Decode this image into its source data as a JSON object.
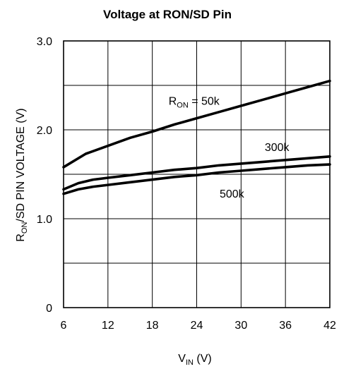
{
  "chart_data": {
    "type": "line",
    "title": "Voltage at RON/SD Pin",
    "xlabel": {
      "main": "V",
      "sub": "IN",
      "unit": " (V)"
    },
    "ylabel": {
      "main": "R",
      "sub": "ON",
      "rest": "/SD PIN VOLTAGE (V)"
    },
    "xlim": [
      6,
      42
    ],
    "ylim": [
      0,
      3.0
    ],
    "x_ticks": [
      6,
      12,
      18,
      24,
      30,
      36,
      42
    ],
    "x_tick_labels": [
      "6",
      "12",
      "18",
      "24",
      "30",
      "36",
      "42"
    ],
    "y_ticks": [
      0,
      1.0,
      2.0,
      3.0
    ],
    "y_tick_labels": [
      "0",
      "1.0",
      "2.0",
      "3.0"
    ],
    "y_gridlines": [
      0.5,
      1.0,
      1.5,
      2.0,
      2.5
    ],
    "grid": true,
    "series": [
      {
        "name": "RON = 50k",
        "label_main": "R",
        "label_sub": "ON",
        "label_rest": " = 50k",
        "x": [
          6,
          9,
          12,
          15,
          18,
          21,
          24,
          27,
          30,
          33,
          36,
          39,
          42
        ],
        "y": [
          1.58,
          1.73,
          1.82,
          1.91,
          1.98,
          2.06,
          2.13,
          2.2,
          2.27,
          2.34,
          2.41,
          2.48,
          2.55
        ]
      },
      {
        "name": "300k",
        "label_main": "300k",
        "x": [
          6,
          8,
          10,
          12,
          15,
          18,
          21,
          24,
          27,
          30,
          33,
          36,
          39,
          42
        ],
        "y": [
          1.33,
          1.4,
          1.44,
          1.46,
          1.49,
          1.52,
          1.55,
          1.57,
          1.6,
          1.62,
          1.64,
          1.66,
          1.68,
          1.7
        ]
      },
      {
        "name": "500k",
        "label_main": "500k",
        "x": [
          6,
          8,
          10,
          12,
          15,
          18,
          21,
          24,
          27,
          30,
          33,
          36,
          39,
          42
        ],
        "y": [
          1.28,
          1.33,
          1.36,
          1.38,
          1.41,
          1.44,
          1.47,
          1.49,
          1.52,
          1.54,
          1.56,
          1.58,
          1.6,
          1.61
        ]
      }
    ]
  }
}
